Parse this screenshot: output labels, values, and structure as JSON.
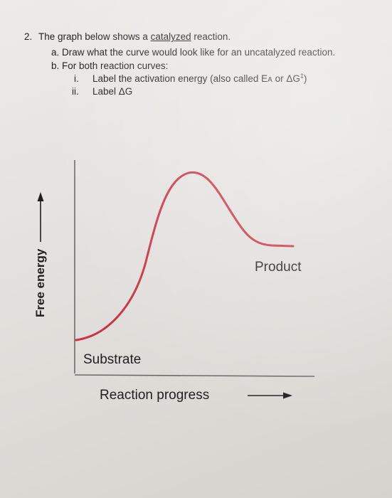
{
  "question": {
    "number": "2.",
    "stem_before": "The graph below shows a ",
    "stem_underlined": "catalyzed",
    "stem_after": " reaction.",
    "part_a": "a.  Draw what the curve would look like for an uncatalyzed reaction.",
    "part_b": "b.  For both reaction curves:",
    "sub_i": {
      "marker": "i.",
      "text_before": "Label the activation energy (also called E",
      "sub": "A",
      "text_mid": " or ΔG",
      "sup": "‡",
      "text_after": ")"
    },
    "sub_ii": {
      "marker": "ii.",
      "text": "Label ΔG"
    }
  },
  "graph": {
    "y_label": "Free energy",
    "x_label": "Reaction progress",
    "substrate_label": "Substrate",
    "product_label": "Product",
    "curve_color": "#cc3344",
    "axis_color": "#6a6a6a"
  }
}
